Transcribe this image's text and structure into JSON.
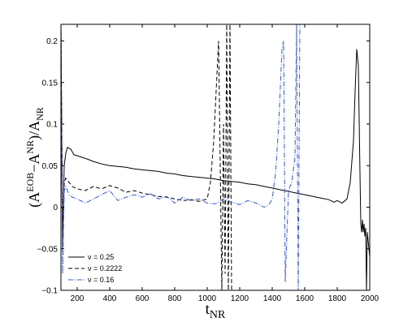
{
  "chart_data": {
    "type": "line",
    "title": "",
    "xlabel": "t",
    "xlabel_sub": "NR",
    "ylabel": "(A^EOB−A^NR)/A_NR",
    "xlim": [
      100,
      2000
    ],
    "ylim": [
      -0.1,
      0.22
    ],
    "xticks": [
      200,
      400,
      600,
      800,
      1000,
      1200,
      1400,
      1600,
      1800,
      2000
    ],
    "yticks": [
      -0.1,
      -0.05,
      0,
      0.05,
      0.1,
      0.15,
      0.2
    ],
    "ytick_labels": [
      "−0.1",
      "−0.05",
      "0",
      "0.05",
      "0.1",
      "0.15",
      "0.2"
    ],
    "grid": false,
    "legend_position": "bottom-left",
    "series": [
      {
        "name": "ν = 0.25",
        "color": "#000000",
        "dash": "solid",
        "x": [
          100,
          110,
          120,
          130,
          140,
          160,
          180,
          200,
          230,
          260,
          300,
          350,
          400,
          450,
          500,
          550,
          600,
          650,
          700,
          750,
          800,
          850,
          900,
          950,
          1000,
          1050,
          1100,
          1150,
          1200,
          1250,
          1300,
          1350,
          1400,
          1450,
          1500,
          1550,
          1600,
          1650,
          1700,
          1750,
          1780,
          1800,
          1830,
          1860,
          1880,
          1900,
          1910,
          1920,
          1930,
          1940,
          1945,
          1950,
          1955,
          1960,
          1965,
          1970,
          1975,
          1980,
          1985,
          1990,
          2000
        ],
        "y": [
          0.22,
          -0.05,
          0.05,
          0.065,
          0.072,
          0.07,
          0.063,
          0.062,
          0.06,
          0.058,
          0.055,
          0.052,
          0.05,
          0.049,
          0.048,
          0.046,
          0.045,
          0.044,
          0.043,
          0.041,
          0.04,
          0.038,
          0.037,
          0.036,
          0.035,
          0.034,
          0.032,
          0.031,
          0.03,
          0.028,
          0.027,
          0.025,
          0.023,
          0.021,
          0.019,
          0.017,
          0.015,
          0.013,
          0.011,
          0.009,
          0.006,
          0.008,
          0.005,
          0.01,
          0.03,
          0.08,
          0.14,
          0.19,
          0.17,
          0.04,
          -0.02,
          -0.03,
          -0.015,
          -0.03,
          -0.02,
          -0.035,
          -0.025,
          -0.1,
          -0.03,
          -0.04,
          -0.06
        ]
      },
      {
        "name": "ν = 0.2222",
        "color": "#000000",
        "dash": "dashed",
        "x": [
          100,
          110,
          120,
          130,
          150,
          170,
          200,
          250,
          300,
          350,
          400,
          450,
          500,
          550,
          600,
          650,
          700,
          750,
          800,
          850,
          900,
          950,
          1000,
          1020,
          1040,
          1060,
          1070,
          1080,
          1090,
          1100,
          1110,
          1120,
          1130,
          1140,
          1150
        ],
        "y": [
          0.22,
          -0.03,
          0.03,
          0.035,
          0.03,
          0.025,
          0.022,
          0.02,
          0.025,
          0.022,
          0.026,
          0.023,
          0.018,
          0.02,
          0.017,
          0.015,
          0.013,
          0.012,
          0.01,
          0.008,
          0.009,
          0.007,
          0.01,
          0.03,
          0.08,
          0.16,
          0.2,
          0.05,
          -0.1,
          0.1,
          -0.08,
          0.22,
          -0.1,
          0.22,
          -0.1
        ]
      },
      {
        "name": "ν = 0.16",
        "color": "#3355dd",
        "dash": "dashdot",
        "x": [
          100,
          110,
          120,
          130,
          150,
          170,
          200,
          250,
          300,
          350,
          400,
          450,
          500,
          550,
          600,
          650,
          700,
          750,
          800,
          850,
          900,
          950,
          1000,
          1050,
          1100,
          1150,
          1200,
          1250,
          1300,
          1350,
          1380,
          1400,
          1420,
          1440,
          1460,
          1470,
          1480,
          1500,
          1520,
          1540,
          1550,
          1560,
          1570
        ],
        "y": [
          0.22,
          -0.08,
          0.02,
          0.025,
          0.015,
          0.012,
          0.01,
          0.005,
          0.01,
          0.015,
          0.02,
          0.008,
          0.012,
          0.015,
          0.012,
          0.016,
          0.01,
          0.013,
          0.005,
          0.012,
          0.008,
          0.01,
          0.005,
          0.004,
          0.01,
          0.006,
          0.003,
          0.008,
          0.005,
          0.0,
          0.003,
          0.01,
          0.04,
          0.1,
          0.19,
          0.2,
          -0.09,
          0.02,
          0.03,
          0.06,
          0.22,
          -0.1,
          0.22
        ]
      }
    ]
  }
}
